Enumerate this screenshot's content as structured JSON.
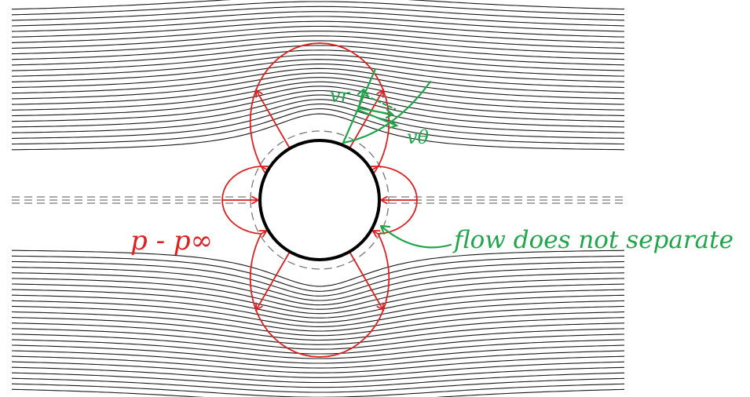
{
  "labels": {
    "pressure": "p - p∞",
    "vr": "vr",
    "vtheta": "vθ",
    "note": "flow does not separate"
  },
  "colors": {
    "streamline": "#1a1a1a",
    "cylinder": "#000000",
    "pressure": "#e02020",
    "annotation": "#1fa64a",
    "dashed": "#777777"
  }
}
